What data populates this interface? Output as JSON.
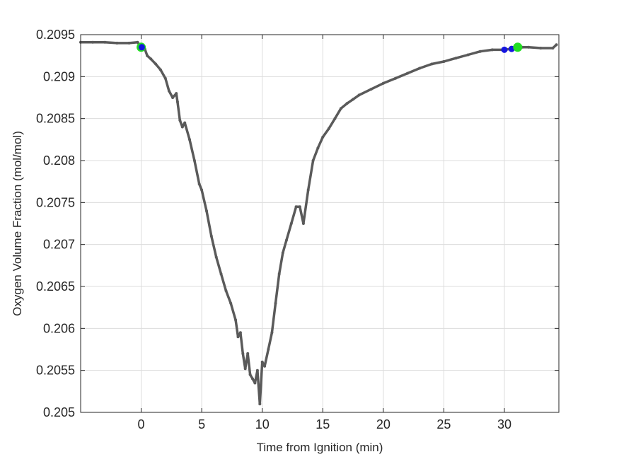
{
  "chart_data": {
    "type": "line",
    "title": "",
    "xlabel": "Time from Ignition (min)",
    "ylabel": "Oxygen Volume Fraction (mol/mol)",
    "xlim": [
      -5,
      34.5
    ],
    "ylim": [
      0.205,
      0.2095
    ],
    "grid": true,
    "x_ticks": [
      0,
      5,
      10,
      15,
      20,
      25,
      30
    ],
    "x_tick_labels": [
      "0",
      "5",
      "10",
      "15",
      "20",
      "25",
      "30"
    ],
    "y_ticks": [
      0.205,
      0.2055,
      0.206,
      0.2065,
      0.207,
      0.2075,
      0.208,
      0.2085,
      0.209,
      0.2095
    ],
    "y_tick_labels": [
      "0.205",
      "0.2055",
      "0.206",
      "0.2065",
      "0.207",
      "0.2075",
      "0.208",
      "0.2085",
      "0.209",
      "0.2095"
    ],
    "series": [
      {
        "color": "#5a5a5a",
        "x": [
          -5,
          -4,
          -3,
          -2,
          -1,
          -0.3,
          0,
          0.3,
          0.5,
          0.8,
          1.2,
          1.6,
          2.0,
          2.3,
          2.6,
          2.9,
          3.0,
          3.2,
          3.4,
          3.6,
          4.0,
          4.4,
          4.8,
          5.0,
          5.4,
          5.8,
          6.2,
          6.6,
          7.0,
          7.4,
          7.8,
          8.0,
          8.2,
          8.4,
          8.6,
          8.8,
          9.0,
          9.2,
          9.4,
          9.6,
          9.8,
          10.0,
          10.2,
          10.5,
          10.8,
          11.1,
          11.4,
          11.7,
          12.0,
          12.4,
          12.8,
          13.1,
          13.4,
          13.8,
          14.2,
          14.6,
          15.0,
          15.5,
          16.0,
          16.5,
          17.0,
          17.5,
          18.0,
          19.0,
          20.0,
          21.0,
          22.0,
          23.0,
          24.0,
          25.0,
          26.0,
          27.0,
          28.0,
          29.0,
          30.0,
          30.5,
          31.0,
          31.5,
          32.0,
          33.0,
          34.0,
          34.3
        ],
        "values": [
          0.20941,
          0.20941,
          0.20941,
          0.2094,
          0.2094,
          0.20941,
          0.20935,
          0.20933,
          0.20925,
          0.20921,
          0.20915,
          0.20908,
          0.20898,
          0.20883,
          0.20875,
          0.2088,
          0.2087,
          0.20848,
          0.2084,
          0.20845,
          0.20825,
          0.208,
          0.20772,
          0.20765,
          0.2074,
          0.2071,
          0.20685,
          0.20665,
          0.20645,
          0.2063,
          0.2061,
          0.2059,
          0.20595,
          0.2057,
          0.20552,
          0.2057,
          0.20545,
          0.2054,
          0.20535,
          0.2055,
          0.2051,
          0.2056,
          0.20555,
          0.20575,
          0.20595,
          0.2063,
          0.20665,
          0.2069,
          0.20705,
          0.20725,
          0.20745,
          0.20745,
          0.20725,
          0.20765,
          0.208,
          0.20815,
          0.20828,
          0.20838,
          0.2085,
          0.20862,
          0.20868,
          0.20873,
          0.20878,
          0.20885,
          0.20892,
          0.20898,
          0.20904,
          0.2091,
          0.20915,
          0.20918,
          0.20922,
          0.20926,
          0.2093,
          0.20932,
          0.20932,
          0.20933,
          0.20935,
          0.20935,
          0.20935,
          0.20934,
          0.20934,
          0.20938
        ]
      }
    ],
    "markers": [
      {
        "color": "#22dd22",
        "x": 0.0,
        "y": 0.20935,
        "size": "large"
      },
      {
        "color": "#1515e0",
        "x": 0.05,
        "y": 0.20935,
        "size": "small"
      },
      {
        "color": "#1515e0",
        "x": 30.0,
        "y": 0.20932,
        "size": "small"
      },
      {
        "color": "#1515e0",
        "x": 30.6,
        "y": 0.20933,
        "size": "small"
      },
      {
        "color": "#22dd22",
        "x": 31.1,
        "y": 0.20935,
        "size": "large"
      }
    ]
  }
}
